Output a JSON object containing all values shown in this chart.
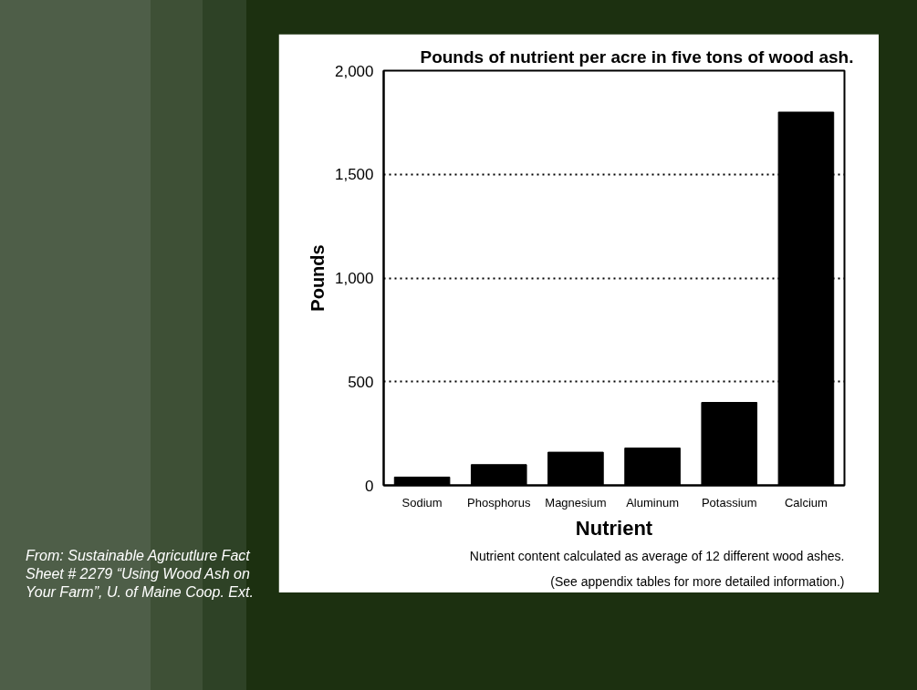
{
  "chart_data": {
    "type": "bar",
    "title": "Pounds of nutrient per acre in five tons of wood ash.",
    "xlabel": "Nutrient",
    "ylabel": "Pounds",
    "categories": [
      "Sodium",
      "Phosphorus",
      "Magnesium",
      "Aluminum",
      "Potassium",
      "Calcium"
    ],
    "values": [
      40,
      100,
      160,
      180,
      400,
      1800
    ],
    "color": "#000000",
    "ylim": [
      0,
      2000
    ],
    "yticks": [
      0,
      500,
      {
        "value": 1000,
        "label": "1,000"
      },
      {
        "value": 1500,
        "label": "1,500"
      },
      {
        "value": 2000,
        "label": "2,000"
      }
    ],
    "grid": "y",
    "annotations": [
      "Nutrient content calculated as average of 12 different wood ashes.",
      "(See appendix tables for more detailed information.)",
      "From:  Sustainable Agricutlure Fact Sheet # 2279  “Using Wood Ash on Your Farm”,  U. of Maine Coop. Ext."
    ]
  }
}
